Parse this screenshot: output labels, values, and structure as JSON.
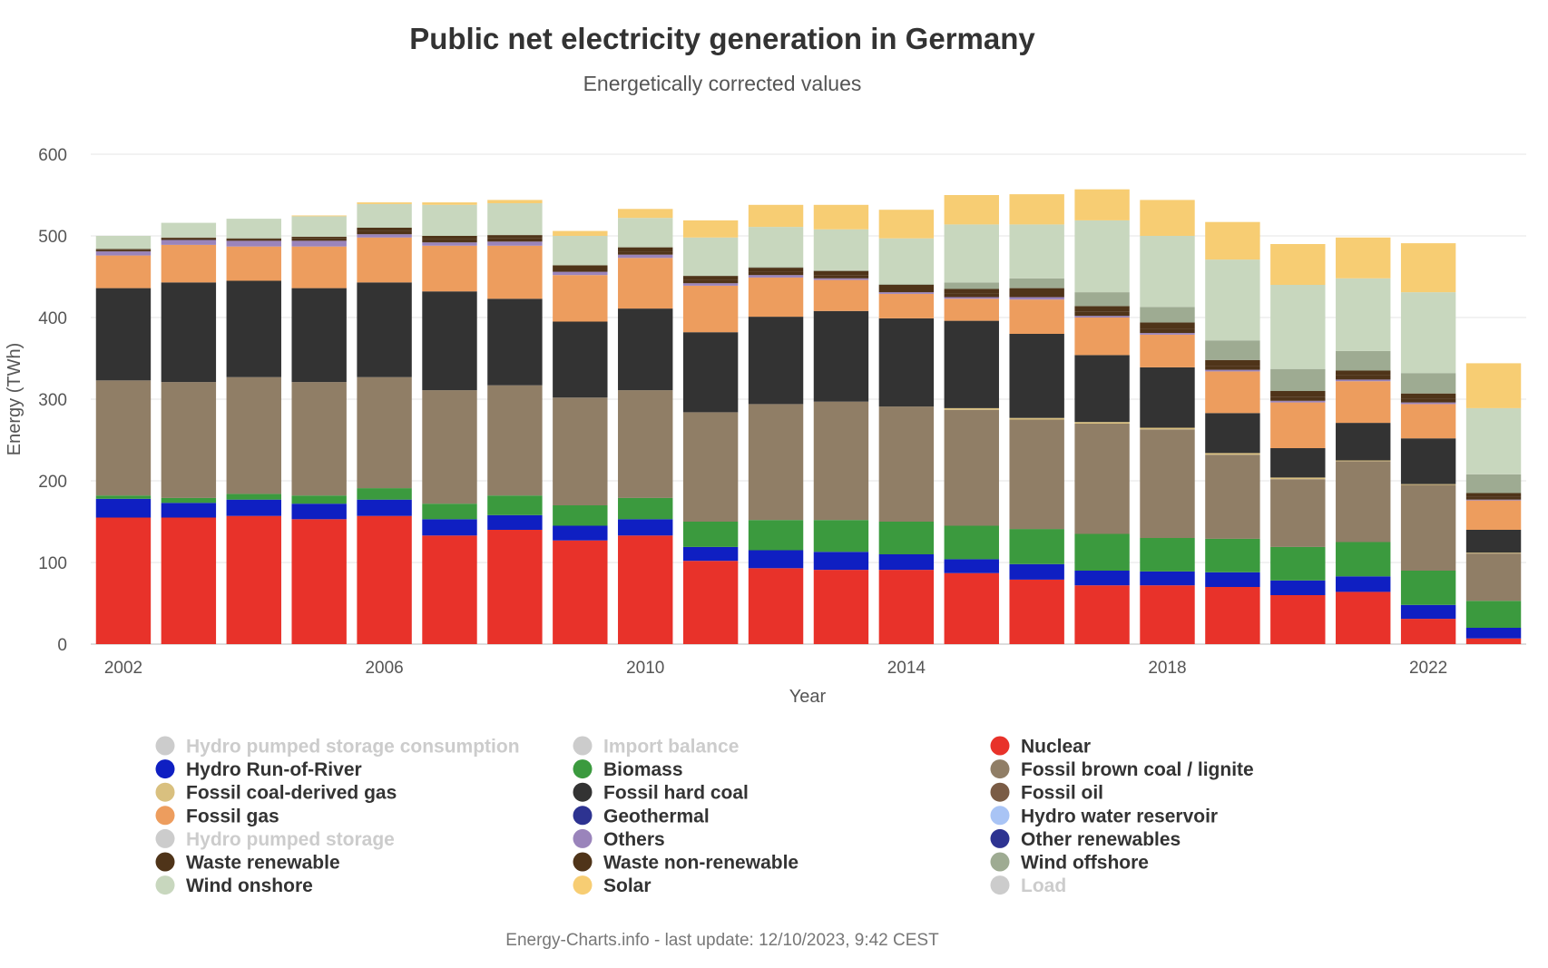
{
  "chart_data": {
    "type": "bar",
    "stacked": true,
    "title": "Public net electricity generation in Germany",
    "subtitle": "Energetically corrected values",
    "xlabel": "Year",
    "ylabel": "Energy (TWh)",
    "ylim": [
      0,
      600
    ],
    "yticks": [
      0,
      100,
      200,
      300,
      400,
      500,
      600
    ],
    "x_tick_labels": [
      "2002",
      "2006",
      "2010",
      "2014",
      "2018",
      "2022"
    ],
    "grid": true,
    "categories": [
      "2002",
      "2003",
      "2004",
      "2005",
      "2006",
      "2007",
      "2008",
      "2009",
      "2010",
      "2011",
      "2012",
      "2013",
      "2014",
      "2015",
      "2016",
      "2017",
      "2018",
      "2019",
      "2020",
      "2021",
      "2022",
      "2023"
    ],
    "series": [
      {
        "name": "Nuclear",
        "color": "#e8322a",
        "values": [
          155,
          155,
          157,
          153,
          157,
          133,
          140,
          127,
          133,
          102,
          93,
          91,
          91,
          87,
          79,
          72,
          72,
          70,
          60,
          64,
          31,
          7
        ]
      },
      {
        "name": "Hydro Run-of-River",
        "color": "#0f1fc2",
        "values": [
          23,
          18,
          20,
          19,
          20,
          20,
          18,
          18,
          20,
          17,
          22,
          22,
          19,
          17,
          19,
          18,
          17,
          18,
          18,
          19,
          17,
          13
        ]
      },
      {
        "name": "Hydro water reservoir",
        "color": "#a9c4f5",
        "values": [
          0,
          0,
          0,
          0,
          0,
          0,
          0,
          0,
          0,
          0,
          0,
          0,
          0,
          0,
          0,
          0,
          0,
          0,
          0,
          0,
          0,
          0
        ]
      },
      {
        "name": "Biomass",
        "color": "#3b9a3e",
        "values": [
          4,
          6,
          7,
          10,
          14,
          19,
          24,
          25,
          26,
          31,
          37,
          39,
          40,
          41,
          43,
          45,
          41,
          41,
          41,
          42,
          42,
          33
        ]
      },
      {
        "name": "Geothermal",
        "color": "#2d3391",
        "values": [
          0,
          0,
          0,
          0,
          0,
          0,
          0,
          0,
          0,
          0,
          0,
          0,
          0,
          0,
          0,
          0,
          0,
          0,
          0,
          0,
          0,
          0
        ]
      },
      {
        "name": "Other renewables",
        "color": "#2d3391",
        "values": [
          0,
          0,
          0,
          0,
          0,
          0,
          0,
          0,
          0,
          0,
          0,
          0,
          0,
          0,
          0,
          0,
          0,
          0,
          0,
          0,
          0,
          0
        ]
      },
      {
        "name": "Fossil brown coal / lignite",
        "color": "#907e66",
        "values": [
          141,
          142,
          143,
          139,
          136,
          139,
          135,
          132,
          132,
          134,
          142,
          145,
          141,
          142,
          134,
          135,
          133,
          103,
          83,
          99,
          105,
          58
        ]
      },
      {
        "name": "Fossil coal-derived gas",
        "color": "#d9c07f",
        "values": [
          0,
          0,
          0,
          0,
          0,
          0,
          0,
          0,
          0,
          0,
          0,
          0,
          0,
          2,
          2,
          2,
          2,
          2,
          2,
          1,
          1,
          1
        ]
      },
      {
        "name": "Fossil hard coal",
        "color": "#333333",
        "values": [
          113,
          122,
          118,
          115,
          116,
          121,
          106,
          93,
          100,
          98,
          107,
          111,
          108,
          107,
          103,
          82,
          74,
          49,
          36,
          46,
          56,
          28
        ]
      },
      {
        "name": "Fossil oil",
        "color": "#7a5c45",
        "values": [
          0,
          0,
          0,
          0,
          0,
          0,
          0,
          0,
          0,
          0,
          0,
          0,
          0,
          0,
          0,
          0,
          0,
          0,
          0,
          0,
          0,
          0
        ]
      },
      {
        "name": "Fossil gas",
        "color": "#ed9d5e",
        "values": [
          40,
          46,
          42,
          51,
          55,
          56,
          65,
          57,
          62,
          57,
          48,
          38,
          30,
          27,
          42,
          46,
          40,
          51,
          56,
          51,
          42,
          36
        ]
      },
      {
        "name": "Others",
        "color": "#9a84bb",
        "values": [
          5,
          6,
          7,
          7,
          4,
          4,
          5,
          4,
          4,
          3,
          3,
          2,
          2,
          2,
          3,
          2,
          2,
          2,
          2,
          2,
          2,
          1
        ]
      },
      {
        "name": "Waste renewable",
        "color": "#4f3419",
        "values": [
          2,
          2,
          2,
          3,
          4,
          4,
          4,
          4,
          4,
          4,
          4,
          4,
          4,
          4,
          5,
          5,
          5,
          5,
          5,
          5,
          5,
          4
        ]
      },
      {
        "name": "Waste non-renewable",
        "color": "#4f3419",
        "values": [
          1,
          1,
          1,
          2,
          4,
          4,
          4,
          4,
          5,
          5,
          5,
          5,
          5,
          6,
          6,
          7,
          8,
          7,
          7,
          6,
          6,
          4
        ]
      },
      {
        "name": "Wind offshore",
        "color": "#9eab92",
        "values": [
          0,
          0,
          0,
          0,
          0,
          0,
          0,
          0,
          0,
          0,
          1,
          1,
          1,
          8,
          12,
          17,
          19,
          24,
          27,
          24,
          25,
          23
        ]
      },
      {
        "name": "Wind onshore",
        "color": "#c8d7be",
        "values": [
          16,
          18,
          24,
          25,
          29,
          38,
          39,
          36,
          36,
          47,
          49,
          50,
          56,
          71,
          66,
          88,
          87,
          99,
          103,
          89,
          99,
          81
        ]
      },
      {
        "name": "Solar",
        "color": "#f7cd73",
        "values": [
          0,
          0,
          0,
          1,
          2,
          3,
          4,
          6,
          11,
          21,
          27,
          30,
          35,
          36,
          37,
          38,
          44,
          46,
          50,
          50,
          60,
          55
        ]
      }
    ],
    "legend": {
      "placement": "bottom",
      "items": [
        {
          "name": "Hydro pumped storage consumption",
          "color": "#cccccc",
          "active": false
        },
        {
          "name": "Import balance",
          "color": "#cccccc",
          "active": false
        },
        {
          "name": "Nuclear",
          "color": "#e8322a",
          "active": true
        },
        {
          "name": "Hydro Run-of-River",
          "color": "#0f1fc2",
          "active": true
        },
        {
          "name": "Biomass",
          "color": "#3b9a3e",
          "active": true
        },
        {
          "name": "Fossil brown coal / lignite",
          "color": "#907e66",
          "active": true
        },
        {
          "name": "Fossil coal-derived gas",
          "color": "#d9c07f",
          "active": true
        },
        {
          "name": "Fossil hard coal",
          "color": "#333333",
          "active": true
        },
        {
          "name": "Fossil oil",
          "color": "#7a5c45",
          "active": true
        },
        {
          "name": "Fossil gas",
          "color": "#ed9d5e",
          "active": true
        },
        {
          "name": "Geothermal",
          "color": "#2d3391",
          "active": true
        },
        {
          "name": "Hydro water reservoir",
          "color": "#a9c4f5",
          "active": true
        },
        {
          "name": "Hydro pumped storage",
          "color": "#cccccc",
          "active": false
        },
        {
          "name": "Others",
          "color": "#9a84bb",
          "active": true
        },
        {
          "name": "Other renewables",
          "color": "#2d3391",
          "active": true
        },
        {
          "name": "Waste renewable",
          "color": "#4f3419",
          "active": true
        },
        {
          "name": "Waste non-renewable",
          "color": "#4f3419",
          "active": true
        },
        {
          "name": "Wind offshore",
          "color": "#9eab92",
          "active": true
        },
        {
          "name": "Wind onshore",
          "color": "#c8d7be",
          "active": true
        },
        {
          "name": "Solar",
          "color": "#f7cd73",
          "active": true
        },
        {
          "name": "Load",
          "color": "#cccccc",
          "active": false
        }
      ]
    },
    "credit": "Energy-Charts.info - last update: 12/10/2023, 9:42 CEST"
  }
}
